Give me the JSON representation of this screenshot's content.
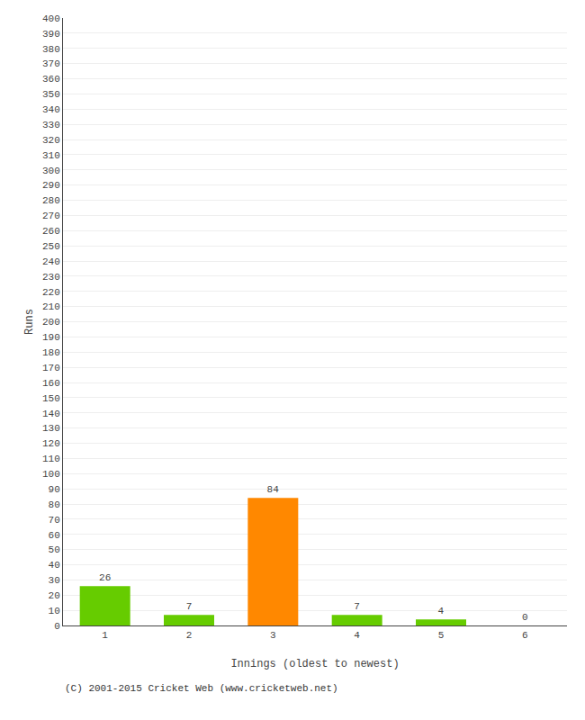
{
  "chart_data": {
    "type": "bar",
    "xlabel": "Innings (oldest to newest)",
    "ylabel": "Runs",
    "categories": [
      1,
      2,
      3,
      4,
      5,
      6
    ],
    "values": [
      26,
      7,
      84,
      7,
      4,
      0
    ],
    "colors": [
      "#66cc00",
      "#66cc00",
      "#ff8800",
      "#66cc00",
      "#66cc00",
      "#66cc00"
    ],
    "ylim": [
      0,
      400
    ],
    "yticks": [
      0,
      10,
      20,
      30,
      40,
      50,
      60,
      70,
      80,
      90,
      100,
      110,
      120,
      130,
      140,
      150,
      160,
      170,
      180,
      190,
      200,
      210,
      220,
      230,
      240,
      250,
      260,
      270,
      280,
      290,
      300,
      310,
      320,
      330,
      340,
      350,
      360,
      370,
      380,
      390,
      400
    ],
    "grid": true,
    "data_labels": true,
    "annotations": [
      {
        "text": "(C) 2001-2015 Cricket Web (www.cricketweb.net)"
      }
    ]
  }
}
